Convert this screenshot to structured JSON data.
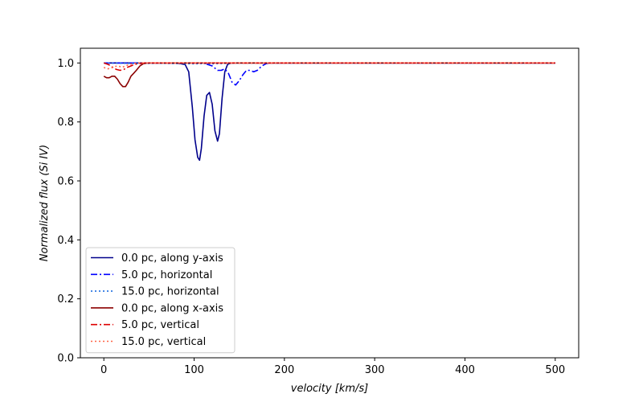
{
  "chart_data": {
    "type": "line",
    "title": "",
    "xlabel": "velocity [km/s]",
    "ylabel": "Normalized flux (Si IV)",
    "xlim": [
      -26,
      526
    ],
    "ylim": [
      0,
      1.05
    ],
    "xticks": [
      0,
      100,
      200,
      300,
      400,
      500
    ],
    "yticks": [
      0.0,
      0.2,
      0.4,
      0.6,
      0.8,
      1.0
    ],
    "ytick_labels": [
      "0.0",
      "0.2",
      "0.4",
      "0.6",
      "0.8",
      "1.0"
    ],
    "grid": false,
    "legend_position": "lower-left",
    "series": [
      {
        "name": "0.0 pc, along y-axis",
        "color": "#00008b",
        "dash": "solid",
        "x": [
          0,
          80,
          90,
          94,
          98,
          101,
          104,
          106,
          108,
          111,
          114,
          117,
          120,
          123,
          126,
          128,
          131,
          134,
          137,
          141,
          150,
          200,
          500
        ],
        "y": [
          1.0,
          1.0,
          0.995,
          0.97,
          0.85,
          0.74,
          0.68,
          0.67,
          0.71,
          0.82,
          0.89,
          0.9,
          0.86,
          0.77,
          0.735,
          0.76,
          0.88,
          0.97,
          0.995,
          1.0,
          1.0,
          1.0,
          1.0
        ]
      },
      {
        "name": "5.0 pc, horizontal",
        "color": "#0000ff",
        "dash": "dashdot",
        "x": [
          0,
          110,
          120,
          126,
          130,
          134,
          138,
          142,
          146,
          150,
          154,
          158,
          162,
          166,
          170,
          175,
          180,
          185,
          200,
          500
        ],
        "y": [
          1.0,
          1.0,
          0.99,
          0.975,
          0.975,
          0.98,
          0.965,
          0.935,
          0.925,
          0.94,
          0.96,
          0.975,
          0.975,
          0.97,
          0.975,
          0.99,
          0.998,
          1.0,
          1.0,
          1.0
        ]
      },
      {
        "name": "15.0 pc, horizontal",
        "color": "#1e6fe0",
        "dash": "dotted",
        "x": [
          0,
          40,
          60,
          80,
          100,
          110,
          120,
          130,
          140,
          150,
          500
        ],
        "y": [
          1.0,
          0.998,
          0.999,
          0.998,
          0.997,
          0.998,
          0.997,
          0.998,
          0.999,
          1.0,
          1.0
        ]
      },
      {
        "name": "0.0 pc, along x-axis",
        "color": "#8b0000",
        "dash": "solid",
        "x": [
          0,
          3,
          6,
          9,
          12,
          15,
          18,
          21,
          24,
          27,
          30,
          33,
          36,
          40,
          44,
          48,
          52,
          60,
          500
        ],
        "y": [
          0.955,
          0.95,
          0.95,
          0.955,
          0.955,
          0.945,
          0.93,
          0.92,
          0.92,
          0.935,
          0.955,
          0.965,
          0.975,
          0.99,
          0.998,
          1.0,
          1.0,
          1.0,
          1.0
        ]
      },
      {
        "name": "5.0 pc, vertical",
        "color": "#dd0000",
        "dash": "dashdot",
        "x": [
          0,
          5,
          10,
          14,
          18,
          22,
          26,
          30,
          34,
          38,
          44,
          50,
          500
        ],
        "y": [
          1.0,
          0.995,
          0.985,
          0.978,
          0.975,
          0.978,
          0.985,
          0.99,
          0.995,
          0.998,
          1.0,
          1.0,
          1.0
        ]
      },
      {
        "name": "15.0 pc, vertical",
        "color": "#ff6347",
        "dash": "dotted",
        "x": [
          0,
          4,
          8,
          12,
          16,
          20,
          24,
          28,
          32,
          38,
          44,
          500
        ],
        "y": [
          0.985,
          0.98,
          0.983,
          0.988,
          0.99,
          0.985,
          0.99,
          0.995,
          0.998,
          1.0,
          1.0,
          1.0
        ]
      }
    ]
  }
}
